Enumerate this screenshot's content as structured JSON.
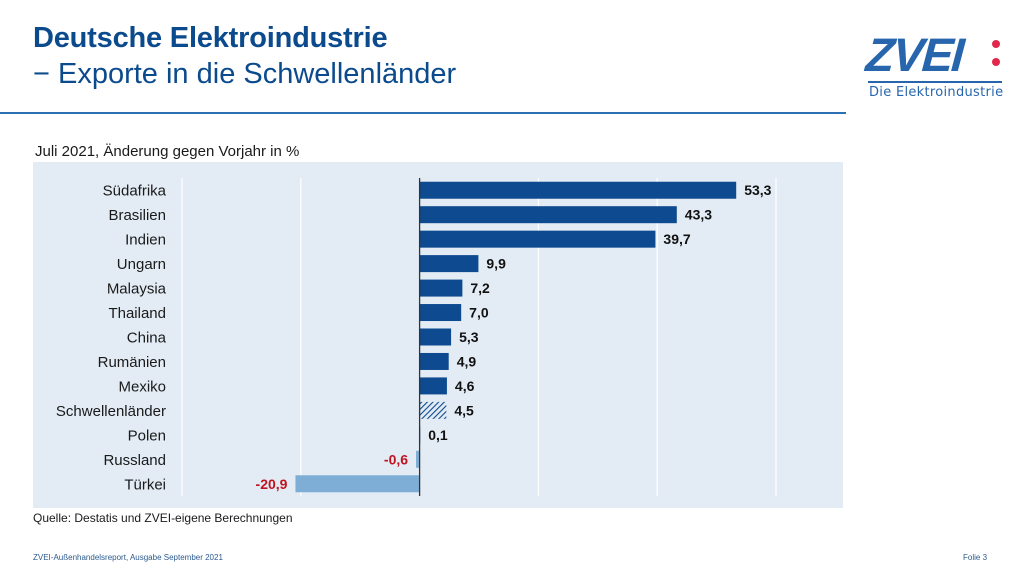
{
  "header": {
    "title": "Deutsche Elektroindustrie",
    "subtitle": "− Exporte in die Schwellenländer"
  },
  "logo": {
    "wordmark": "ZVEI",
    "tagline": "Die Elektroindustrie",
    "colors": {
      "brand_blue": "#2766ad",
      "dot_red": "#e2284a"
    }
  },
  "chart_data": {
    "type": "bar",
    "orientation": "horizontal",
    "title": "Juli 2021, Änderung gegen Vorjahr in %",
    "xlabel": "",
    "ylabel": "",
    "xlim": [
      -40,
      60
    ],
    "gridlines_at": [
      -40,
      -20,
      0,
      20,
      40,
      60
    ],
    "grid": true,
    "categories": [
      "Südafrika",
      "Brasilien",
      "Indien",
      "Ungarn",
      "Malaysia",
      "Thailand",
      "China",
      "Rumänien",
      "Mexiko",
      "Schwellenländer",
      "Polen",
      "Russland",
      "Türkei"
    ],
    "values": [
      53.3,
      43.3,
      39.7,
      9.9,
      7.2,
      7.0,
      5.3,
      4.9,
      4.6,
      4.5,
      0.1,
      -0.6,
      -20.9
    ],
    "labels": [
      "53,3",
      "43,3",
      "39,7",
      "9,9",
      "7,2",
      "7,0",
      "5,3",
      "4,9",
      "4,6",
      "4,5",
      "0,1",
      "-0,6",
      "-20,9"
    ],
    "highlight": {
      "category": "Schwellenländer",
      "style": "hatched"
    },
    "colors": {
      "positive": "#0d4a8f",
      "negative": "#7eaed6",
      "negative_label": "#c0121f",
      "positive_label": "#111111",
      "background": "#e3ecf5",
      "grid": "#ffffff",
      "axis": "#333333"
    }
  },
  "source": "Quelle: Destatis und ZVEI-eigene Berechnungen",
  "footer": {
    "left": "ZVEI-Außenhandelsreport, Ausgabe September 2021",
    "right": "Folie 3"
  }
}
